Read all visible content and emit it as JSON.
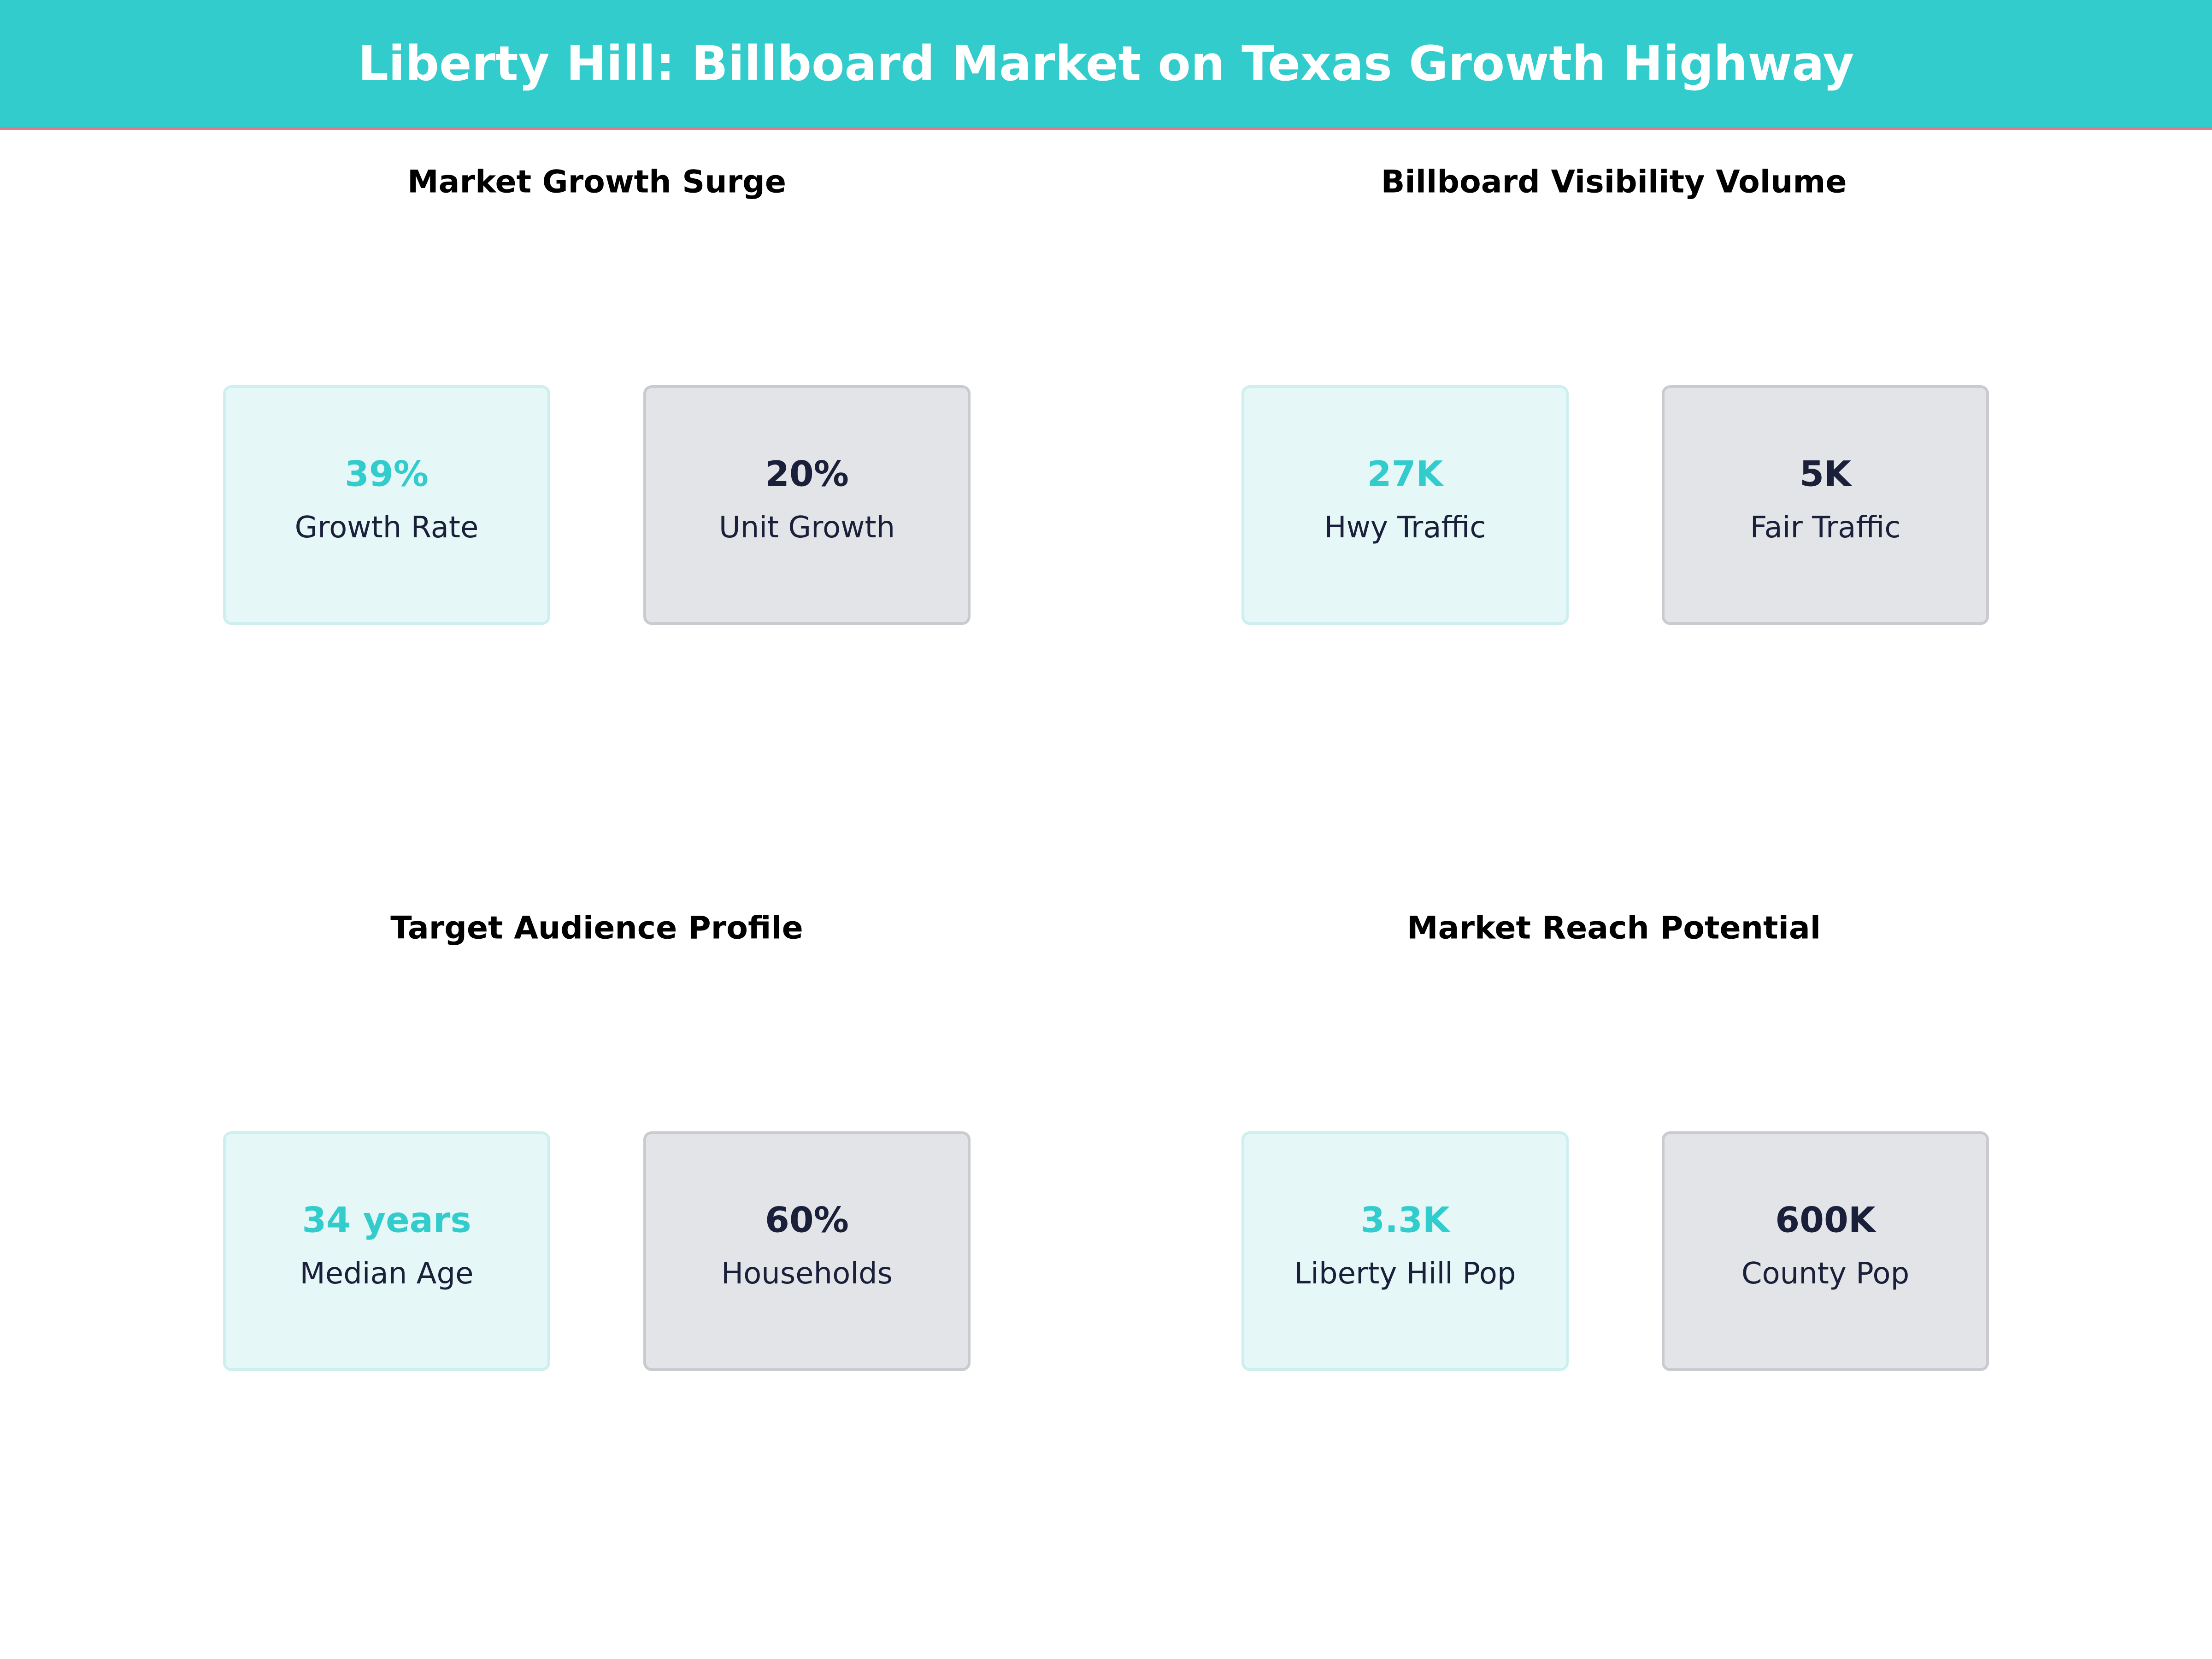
{
  "header": {
    "title": "Liberty Hill: Billboard Market on Texas Growth Highway"
  },
  "panels": [
    {
      "title": "Market Growth Surge",
      "cards": [
        {
          "value": "39%",
          "label": "Growth Rate"
        },
        {
          "value": "20%",
          "label": "Unit Growth"
        }
      ]
    },
    {
      "title": "Billboard Visibility Volume",
      "cards": [
        {
          "value": "27K",
          "label": "Hwy Traffic"
        },
        {
          "value": "5K",
          "label": "Fair Traffic"
        }
      ]
    },
    {
      "title": "Target Audience Profile",
      "cards": [
        {
          "value": "34 years",
          "label": "Median Age"
        },
        {
          "value": "60%",
          "label": "Households"
        }
      ]
    },
    {
      "title": "Market Reach Potential",
      "cards": [
        {
          "value": "3.3K",
          "label": "Liberty Hill Pop"
        },
        {
          "value": "600K",
          "label": "County Pop"
        }
      ]
    }
  ]
}
